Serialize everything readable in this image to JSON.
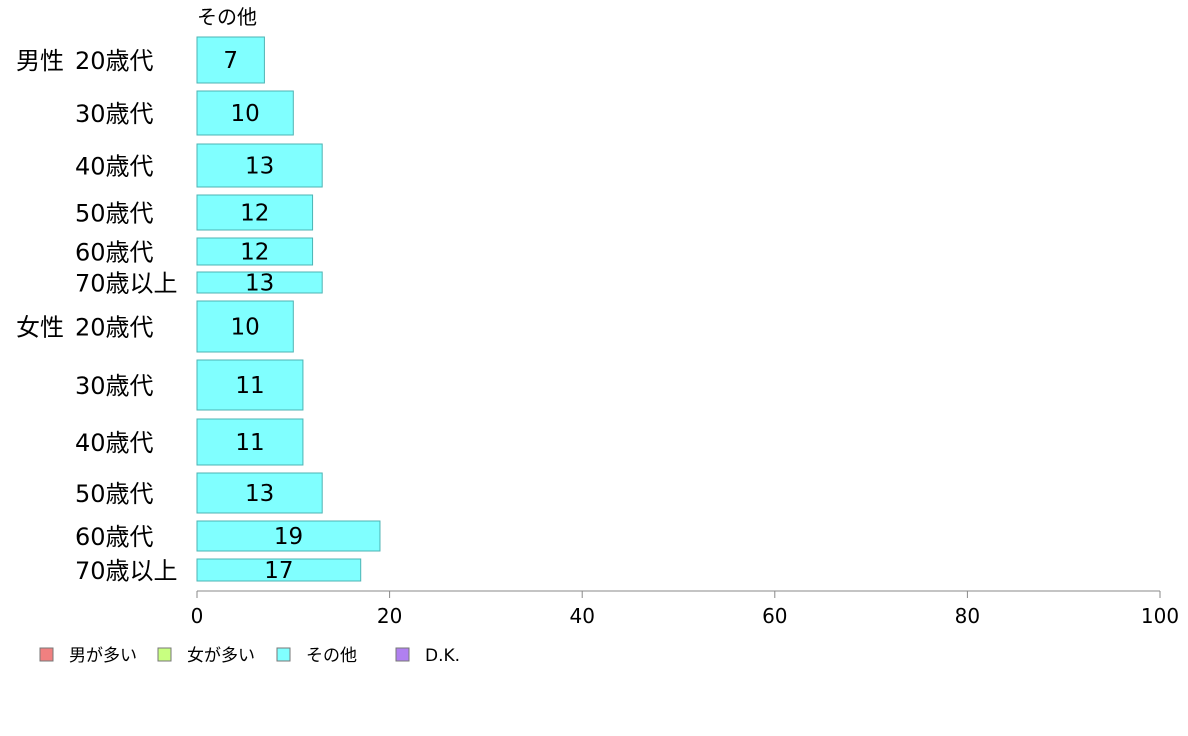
{
  "chart_data": {
    "type": "bar",
    "orientation": "horizontal",
    "title": "その他",
    "groups": [
      {
        "label": "男性",
        "rows": [
          {
            "label": "20歳代",
            "value": 7
          },
          {
            "label": "30歳代",
            "value": 10
          },
          {
            "label": "40歳代",
            "value": 13
          },
          {
            "label": "50歳代",
            "value": 12
          },
          {
            "label": "60歳代",
            "value": 12
          },
          {
            "label": "70歳以上",
            "value": 13
          }
        ]
      },
      {
        "label": "女性",
        "rows": [
          {
            "label": "20歳代",
            "value": 10
          },
          {
            "label": "30歳代",
            "value": 11
          },
          {
            "label": "40歳代",
            "value": 11
          },
          {
            "label": "50歳代",
            "value": 13
          },
          {
            "label": "60歳代",
            "value": 19
          },
          {
            "label": "70歳以上",
            "value": 17
          }
        ]
      }
    ],
    "xlim": [
      0,
      100
    ],
    "xticks": [
      0,
      20,
      40,
      60,
      80,
      100
    ],
    "xlabel": "",
    "ylabel": "",
    "grid": false,
    "legend_position": "bottom-left",
    "bar_color": "#80ffff",
    "bar_stroke": "#4db3b3"
  },
  "legend": [
    {
      "label": "男が多い",
      "color": "#f08080"
    },
    {
      "label": "女が多い",
      "color": "#c8ff80"
    },
    {
      "label": "その他",
      "color": "#80ffff"
    },
    {
      "label": "D.K.",
      "color": "#b080f0"
    }
  ]
}
